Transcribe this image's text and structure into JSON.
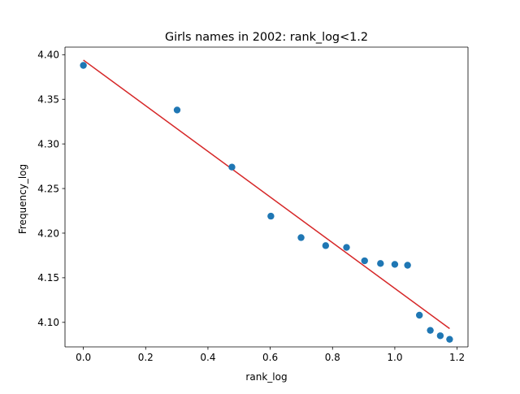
{
  "chart_data": {
    "type": "scatter",
    "title": "Girls names in 2002: rank_log<1.2",
    "xlabel": "rank_log",
    "ylabel": "Frequency_log",
    "xlim": [
      -0.059,
      1.235
    ],
    "ylim": [
      4.0725,
      4.4085
    ],
    "xticks": [
      0.0,
      0.2,
      0.4,
      0.6,
      0.8,
      1.0,
      1.2
    ],
    "xtick_labels": [
      "0.0",
      "0.2",
      "0.4",
      "0.6",
      "0.8",
      "1.0",
      "1.2"
    ],
    "yticks": [
      4.1,
      4.15,
      4.2,
      4.25,
      4.3,
      4.35,
      4.4
    ],
    "ytick_labels": [
      "4.10",
      "4.15",
      "4.20",
      "4.25",
      "4.30",
      "4.35",
      "4.40"
    ],
    "grid": false,
    "series": [
      {
        "kind": "scatter",
        "color": "#1f77b4",
        "x": [
          0.0,
          0.301,
          0.477,
          0.602,
          0.699,
          0.778,
          0.845,
          0.903,
          0.954,
          1.0,
          1.041,
          1.079,
          1.114,
          1.146,
          1.176
        ],
        "y": [
          4.388,
          4.338,
          4.274,
          4.219,
          4.195,
          4.186,
          4.184,
          4.169,
          4.166,
          4.165,
          4.164,
          4.108,
          4.091,
          4.085,
          4.081
        ]
      },
      {
        "kind": "line",
        "color": "#d62728",
        "x": [
          0.0,
          1.176
        ],
        "y": [
          4.394,
          4.093
        ]
      }
    ]
  }
}
